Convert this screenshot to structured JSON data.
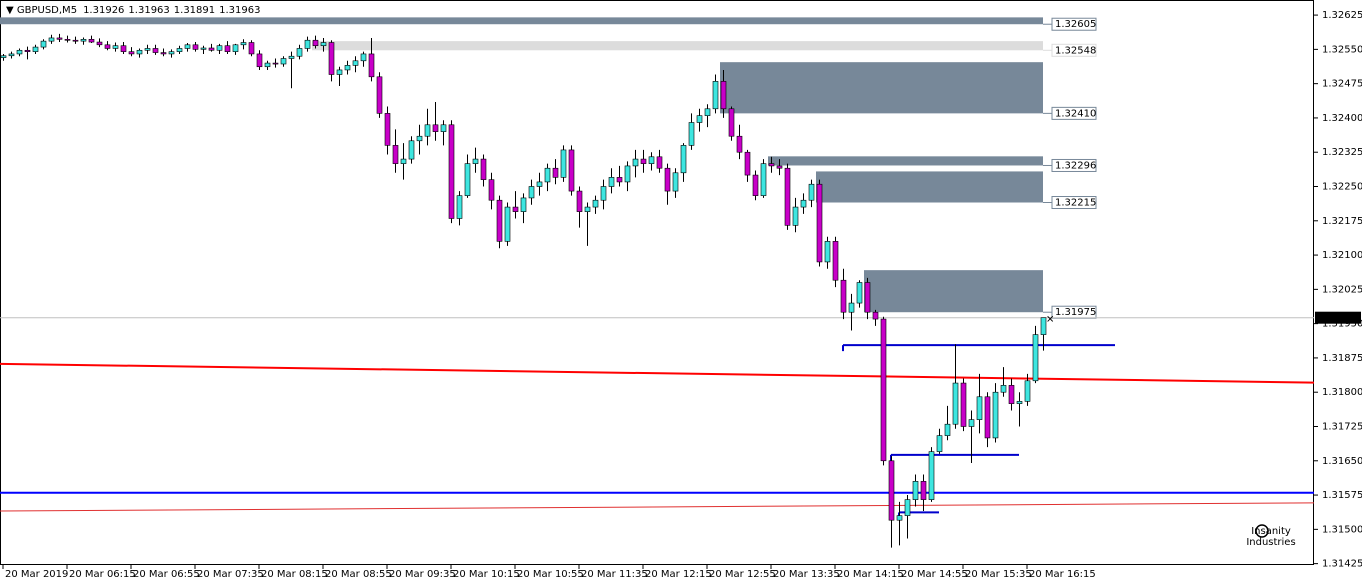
{
  "chart_data": {
    "type": "candlestick",
    "symbol": "GBPUSD,M5",
    "categories": [
      "20 Mar 2019",
      null,
      null,
      null,
      null,
      null,
      null,
      null,
      "20 Mar 06:15",
      null,
      null,
      null,
      null,
      null,
      null,
      null,
      "20 Mar 06:55",
      null,
      null,
      null,
      null,
      null,
      null,
      null,
      "20 Mar 07:35",
      null,
      null,
      null,
      null,
      null,
      null,
      null,
      "20 Mar 08:15",
      null,
      null,
      null,
      null,
      null,
      null,
      null,
      "20 Mar 08:55",
      null,
      null,
      null,
      null,
      null,
      null,
      null,
      "20 Mar 09:35",
      null,
      null,
      null,
      null,
      null,
      null,
      null,
      "20 Mar 10:15",
      null,
      null,
      null,
      null,
      null,
      null,
      null,
      "20 Mar 10:55",
      null,
      null,
      null,
      null,
      null,
      null,
      null,
      "20 Mar 11:35",
      null,
      null,
      null,
      null,
      null,
      null,
      null,
      "20 Mar 12:15",
      null,
      null,
      null,
      null,
      null,
      null,
      null,
      "20 Mar 12:55",
      null,
      null,
      null,
      null,
      null,
      null,
      null,
      "20 Mar 13:35",
      null,
      null,
      null,
      null,
      null,
      null,
      null,
      "20 Mar 14:15",
      null,
      null,
      null,
      null,
      null,
      null,
      null,
      "20 Mar 14:55",
      null,
      null,
      null,
      null,
      null,
      null,
      null,
      "20 Mar 15:35",
      null,
      null,
      null,
      null,
      null,
      null,
      null,
      "20 Mar 16:15",
      null,
      null
    ],
    "ohlc": [
      [
        1.32532,
        1.3254,
        1.32525,
        1.32536
      ],
      [
        1.32536,
        1.32545,
        1.3253,
        1.3254
      ],
      [
        1.3254,
        1.32552,
        1.32535,
        1.32548
      ],
      [
        1.32548,
        1.32556,
        1.32528,
        1.32545
      ],
      [
        1.32545,
        1.3256,
        1.3254,
        1.32555
      ],
      [
        1.32555,
        1.32572,
        1.3255,
        1.32568
      ],
      [
        1.32568,
        1.32582,
        1.32562,
        1.32575
      ],
      [
        1.32575,
        1.32584,
        1.32566,
        1.32572
      ],
      [
        1.32572,
        1.3258,
        1.32565,
        1.3257
      ],
      [
        1.3257,
        1.32578,
        1.32562,
        1.32568
      ],
      [
        1.32568,
        1.32576,
        1.3256,
        1.32572
      ],
      [
        1.32572,
        1.3258,
        1.32564,
        1.32566
      ],
      [
        1.32566,
        1.32574,
        1.32555,
        1.3256
      ],
      [
        1.3256,
        1.32568,
        1.32548,
        1.32552
      ],
      [
        1.32552,
        1.32565,
        1.32545,
        1.32558
      ],
      [
        1.32558,
        1.32566,
        1.3254,
        1.32545
      ],
      [
        1.32545,
        1.32555,
        1.32535,
        1.3254
      ],
      [
        1.3254,
        1.32552,
        1.32532,
        1.32548
      ],
      [
        1.32548,
        1.3256,
        1.3254,
        1.32552
      ],
      [
        1.32552,
        1.3256,
        1.32538,
        1.32543
      ],
      [
        1.32543,
        1.32552,
        1.32535,
        1.3254
      ],
      [
        1.3254,
        1.3255,
        1.32532,
        1.32545
      ],
      [
        1.32545,
        1.32558,
        1.3254,
        1.32552
      ],
      [
        1.32552,
        1.32564,
        1.32545,
        1.3256
      ],
      [
        1.3256,
        1.32566,
        1.32545,
        1.3255
      ],
      [
        1.3255,
        1.32558,
        1.3254,
        1.32553
      ],
      [
        1.32553,
        1.32562,
        1.32545,
        1.32548
      ],
      [
        1.32548,
        1.32562,
        1.3254,
        1.32558
      ],
      [
        1.32558,
        1.32568,
        1.3254,
        1.32545
      ],
      [
        1.32545,
        1.32562,
        1.32538,
        1.3256
      ],
      [
        1.3256,
        1.32572,
        1.3255,
        1.32565
      ],
      [
        1.32565,
        1.3257,
        1.32535,
        1.3254
      ],
      [
        1.3254,
        1.32548,
        1.32505,
        1.32512
      ],
      [
        1.32512,
        1.32525,
        1.32505,
        1.3252
      ],
      [
        1.3252,
        1.3253,
        1.3251,
        1.32518
      ],
      [
        1.32518,
        1.32535,
        1.32512,
        1.3253
      ],
      [
        1.3253,
        1.32545,
        1.32465,
        1.32535
      ],
      [
        1.32535,
        1.3256,
        1.32528,
        1.32552
      ],
      [
        1.32552,
        1.32578,
        1.32545,
        1.3257
      ],
      [
        1.3257,
        1.3258,
        1.32552,
        1.32558
      ],
      [
        1.32558,
        1.32575,
        1.32545,
        1.32565
      ],
      [
        1.32565,
        1.3257,
        1.3248,
        1.32495
      ],
      [
        1.32495,
        1.32512,
        1.3247,
        1.32505
      ],
      [
        1.32505,
        1.32525,
        1.32495,
        1.32515
      ],
      [
        1.32515,
        1.32535,
        1.325,
        1.32525
      ],
      [
        1.32525,
        1.32545,
        1.32512,
        1.3254
      ],
      [
        1.3254,
        1.32575,
        1.3248,
        1.3249
      ],
      [
        1.3249,
        1.325,
        1.324,
        1.3241
      ],
      [
        1.3241,
        1.32425,
        1.3232,
        1.3234
      ],
      [
        1.3234,
        1.32375,
        1.3228,
        1.323
      ],
      [
        1.323,
        1.32345,
        1.32265,
        1.3231
      ],
      [
        1.3231,
        1.3236,
        1.323,
        1.3235
      ],
      [
        1.3235,
        1.32385,
        1.3232,
        1.3236
      ],
      [
        1.3236,
        1.3242,
        1.3234,
        1.32385
      ],
      [
        1.32385,
        1.32435,
        1.3235,
        1.3237
      ],
      [
        1.3237,
        1.32395,
        1.3234,
        1.32385
      ],
      [
        1.32385,
        1.32395,
        1.3217,
        1.3218
      ],
      [
        1.3218,
        1.3224,
        1.32165,
        1.3223
      ],
      [
        1.3223,
        1.3232,
        1.32225,
        1.323
      ],
      [
        1.323,
        1.32335,
        1.3228,
        1.3231
      ],
      [
        1.3231,
        1.3232,
        1.3225,
        1.32265
      ],
      [
        1.32265,
        1.3228,
        1.322,
        1.3222
      ],
      [
        1.3222,
        1.3223,
        1.32115,
        1.3213
      ],
      [
        1.3213,
        1.32215,
        1.3212,
        1.32205
      ],
      [
        1.32205,
        1.3224,
        1.3218,
        1.32195
      ],
      [
        1.32195,
        1.32235,
        1.3217,
        1.32225
      ],
      [
        1.32225,
        1.32265,
        1.3221,
        1.3225
      ],
      [
        1.3225,
        1.3228,
        1.3223,
        1.3226
      ],
      [
        1.3226,
        1.323,
        1.3224,
        1.3229
      ],
      [
        1.3229,
        1.3231,
        1.32255,
        1.3227
      ],
      [
        1.3227,
        1.3234,
        1.3226,
        1.3233
      ],
      [
        1.3233,
        1.3234,
        1.3223,
        1.3224
      ],
      [
        1.3224,
        1.3225,
        1.3216,
        1.32195
      ],
      [
        1.32195,
        1.32215,
        1.3212,
        1.32205
      ],
      [
        1.32205,
        1.3223,
        1.3219,
        1.3222
      ],
      [
        1.3222,
        1.32265,
        1.322,
        1.3225
      ],
      [
        1.3225,
        1.3229,
        1.32235,
        1.3227
      ],
      [
        1.3227,
        1.32295,
        1.3225,
        1.3226
      ],
      [
        1.3226,
        1.32305,
        1.3224,
        1.32295
      ],
      [
        1.32295,
        1.3233,
        1.3227,
        1.3231
      ],
      [
        1.3231,
        1.3233,
        1.3228,
        1.323
      ],
      [
        1.323,
        1.32325,
        1.32285,
        1.32315
      ],
      [
        1.32315,
        1.3233,
        1.3228,
        1.3229
      ],
      [
        1.3229,
        1.323,
        1.3221,
        1.3224
      ],
      [
        1.3224,
        1.3229,
        1.32225,
        1.3228
      ],
      [
        1.3228,
        1.32345,
        1.3226,
        1.3234
      ],
      [
        1.3234,
        1.3241,
        1.3233,
        1.3239
      ],
      [
        1.3239,
        1.3242,
        1.3237,
        1.32405
      ],
      [
        1.32405,
        1.3243,
        1.3238,
        1.3242
      ],
      [
        1.3242,
        1.32495,
        1.3241,
        1.3248
      ],
      [
        1.3248,
        1.32505,
        1.324,
        1.3242
      ],
      [
        1.3242,
        1.32425,
        1.3235,
        1.3236
      ],
      [
        1.3236,
        1.32385,
        1.3231,
        1.32325
      ],
      [
        1.32325,
        1.3233,
        1.3226,
        1.32275
      ],
      [
        1.32275,
        1.32285,
        1.3222,
        1.3223
      ],
      [
        1.3223,
        1.3231,
        1.32225,
        1.323
      ],
      [
        1.323,
        1.32315,
        1.3228,
        1.32295
      ],
      [
        1.32295,
        1.3231,
        1.32275,
        1.3229
      ],
      [
        1.3229,
        1.323,
        1.32155,
        1.32165
      ],
      [
        1.32165,
        1.32225,
        1.3215,
        1.32205
      ],
      [
        1.32205,
        1.32235,
        1.3219,
        1.3222
      ],
      [
        1.3222,
        1.32265,
        1.32205,
        1.32255
      ],
      [
        1.32255,
        1.32265,
        1.32075,
        1.32085
      ],
      [
        1.32085,
        1.3214,
        1.3207,
        1.3213
      ],
      [
        1.3213,
        1.3214,
        1.3203,
        1.32045
      ],
      [
        1.32045,
        1.3207,
        1.3196,
        1.31975
      ],
      [
        1.31975,
        1.32015,
        1.31935,
        1.31995
      ],
      [
        1.31995,
        1.32045,
        1.31985,
        1.3204
      ],
      [
        1.3204,
        1.3205,
        1.3196,
        1.31975
      ],
      [
        1.31975,
        1.3198,
        1.31945,
        1.3196
      ],
      [
        1.3196,
        1.31965,
        1.3164,
        1.3165
      ],
      [
        1.3165,
        1.3166,
        1.3146,
        1.3152
      ],
      [
        1.3152,
        1.3156,
        1.31465,
        1.3153
      ],
      [
        1.3153,
        1.31575,
        1.3148,
        1.31565
      ],
      [
        1.31565,
        1.3162,
        1.3155,
        1.31605
      ],
      [
        1.31605,
        1.3162,
        1.3154,
        1.31565
      ],
      [
        1.31565,
        1.3168,
        1.3156,
        1.3167
      ],
      [
        1.3167,
        1.3172,
        1.31665,
        1.31705
      ],
      [
        1.31705,
        1.3177,
        1.31695,
        1.3173
      ],
      [
        1.3173,
        1.31905,
        1.3172,
        1.3182
      ],
      [
        1.3182,
        1.3183,
        1.31715,
        1.31725
      ],
      [
        1.31725,
        1.3176,
        1.31645,
        1.3174
      ],
      [
        1.3174,
        1.3184,
        1.3171,
        1.3179
      ],
      [
        1.3179,
        1.318,
        1.3168,
        1.317
      ],
      [
        1.317,
        1.3182,
        1.3169,
        1.318
      ],
      [
        1.318,
        1.31855,
        1.3179,
        1.31815
      ],
      [
        1.31815,
        1.3183,
        1.3176,
        1.31775
      ],
      [
        1.31775,
        1.318,
        1.31725,
        1.3178
      ],
      [
        1.3178,
        1.3184,
        1.3177,
        1.31825
      ],
      [
        1.31825,
        1.31945,
        1.3182,
        1.31926
      ],
      [
        1.31926,
        1.31963,
        1.31891,
        1.31963
      ]
    ],
    "up_color": "#3ee6e0",
    "down_color": "#c800c8",
    "ylim": [
      1.31422,
      1.32658
    ],
    "yticks": [
      1.32625,
      {
        "value": 1.3255,
        "label": "1.32550"
      },
      1.32475,
      {
        "value": 1.324,
        "label": "1.32400"
      },
      1.32325,
      {
        "value": 1.3225,
        "label": "1.32250"
      },
      1.32175,
      {
        "value": 1.321,
        "label": "1.32100"
      },
      1.32025,
      {
        "value": 1.3195,
        "label": "1.31950"
      },
      1.31875,
      {
        "value": 1.318,
        "label": "1.31800"
      },
      1.31725,
      {
        "value": 1.3165,
        "label": "1.31650"
      },
      1.31575,
      {
        "value": 1.315,
        "label": "1.31500"
      },
      1.31425
    ],
    "zones": [
      {
        "from": 0,
        "top": 1.3262,
        "bottom": 1.32605,
        "color": "#778899"
      },
      {
        "from": 39,
        "top": 1.32568,
        "bottom": 1.32548,
        "color": "#dcdcdc"
      },
      {
        "from": 90,
        "top": 1.32522,
        "bottom": {
          "value": 1.3241,
          "label": "1.32410"
        },
        "color": "#778899"
      },
      {
        "from": 96,
        "top": 1.32316,
        "bottom": 1.32296,
        "color": "#778899"
      },
      {
        "from": 102,
        "top": 1.32283,
        "bottom": 1.32215,
        "color": "#778899"
      },
      {
        "from": 108,
        "top": 1.32067,
        "bottom": 1.31975,
        "color": "#778899"
      }
    ],
    "levels": [
      {
        "price": 1.3158,
        "color": "#0000ff"
      }
    ],
    "segments": [
      {
        "price": 1.31903,
        "from": 105,
        "to": 139,
        "color": "#0000cc"
      },
      {
        "price": 1.31663,
        "from": 111,
        "to": 127,
        "color": "#0000cc"
      },
      {
        "price": 1.31537,
        "from": 112,
        "to": 117,
        "color": "#0000cc"
      }
    ],
    "trend_lines": [
      {
        "start": 1.31862,
        "end": 1.31821,
        "color": "#ff0000",
        "width": 2
      },
      {
        "start": 1.3154,
        "end": 1.31558,
        "color": "#e03030",
        "width": 1
      }
    ],
    "watermark": [
      "Insanity",
      "Industries"
    ]
  }
}
